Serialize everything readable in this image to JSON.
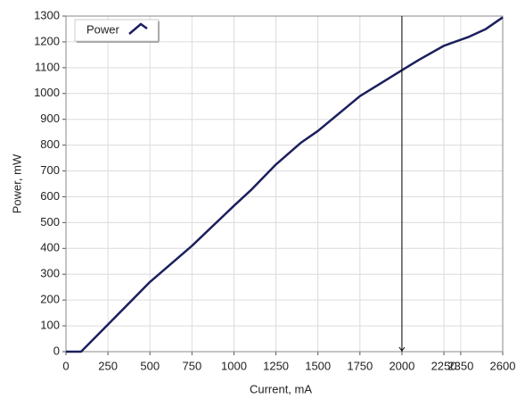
{
  "chart_data": {
    "type": "line",
    "x_label": "Current, mA",
    "y_label": "Power, mW",
    "x": [
      0,
      90,
      250,
      500,
      750,
      1000,
      1100,
      1250,
      1400,
      1500,
      1750,
      1900,
      2000,
      2100,
      2250,
      2400,
      2500,
      2600
    ],
    "series": [
      {
        "name": "Power",
        "color": "#1b1f5c",
        "values": [
          0,
          0,
          105,
          270,
          410,
          565,
          625,
          725,
          810,
          855,
          990,
          1050,
          1090,
          1130,
          1185,
          1220,
          1250,
          1295
        ]
      }
    ],
    "xlim": [
      0,
      2600
    ],
    "ylim": [
      0,
      1300
    ],
    "xticks": [
      0,
      250,
      500,
      750,
      1000,
      1250,
      1500,
      1750,
      2000,
      2250,
      2350,
      2600
    ],
    "yticks": [
      0,
      100,
      200,
      300,
      400,
      500,
      600,
      700,
      800,
      900,
      1000,
      1100,
      1200,
      1300
    ],
    "cursor_x": 2000,
    "grid": true,
    "legend": "top-left"
  }
}
